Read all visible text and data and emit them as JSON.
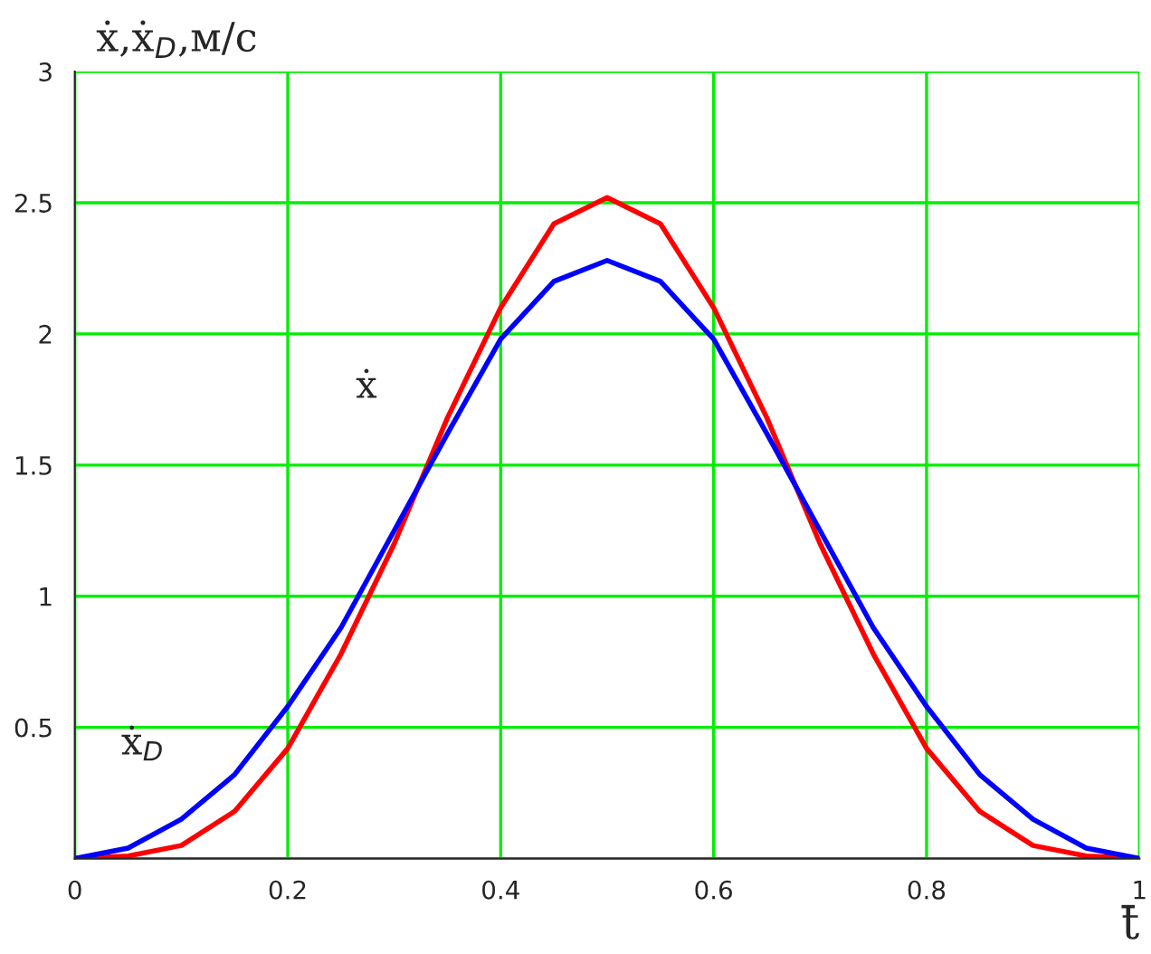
{
  "chart_data": {
    "type": "line",
    "xlabel": "t̄",
    "ylabel": "ẋ,ẋ$_{D}$,м/с",
    "x": [
      0,
      0.05,
      0.1,
      0.15,
      0.2,
      0.25,
      0.3,
      0.35,
      0.4,
      0.45,
      0.5,
      0.55,
      0.6,
      0.65,
      0.7,
      0.75,
      0.8,
      0.85,
      0.9,
      0.95,
      1
    ],
    "series": [
      {
        "name": "ẋ",
        "color": "#ff0000",
        "values": [
          0,
          0.01,
          0.05,
          0.18,
          0.42,
          0.78,
          1.2,
          1.68,
          2.1,
          2.42,
          2.52,
          2.42,
          2.1,
          1.68,
          1.2,
          0.78,
          0.42,
          0.18,
          0.05,
          0.01,
          0
        ]
      },
      {
        "name": "ẋ$_{D}$",
        "color": "#0000ff",
        "values": [
          0,
          0.04,
          0.15,
          0.32,
          0.58,
          0.88,
          1.25,
          1.62,
          1.98,
          2.2,
          2.28,
          2.2,
          1.98,
          1.62,
          1.25,
          0.88,
          0.58,
          0.32,
          0.15,
          0.04,
          0
        ]
      }
    ],
    "xlim": [
      0,
      1
    ],
    "ylim": [
      0,
      3
    ],
    "xticks": [
      0,
      0.2,
      0.4,
      0.6,
      0.8,
      1
    ],
    "yticks": [
      {
        "value": 0,
        "label": null
      },
      0.5,
      1,
      1.5,
      2,
      2.5,
      3
    ],
    "grid": true,
    "line_style": "solid"
  }
}
